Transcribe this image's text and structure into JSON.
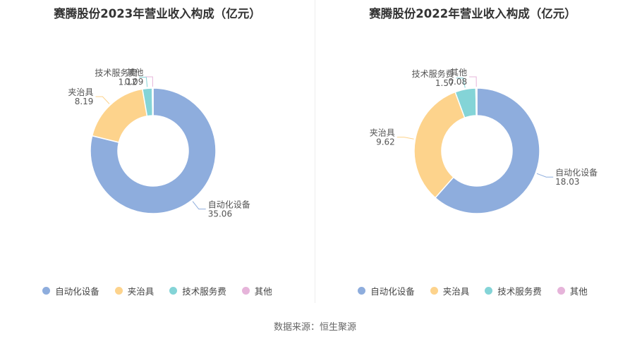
{
  "colors": {
    "automation": "#8eaddd",
    "fixture": "#fdd38c",
    "tech": "#84d4d7",
    "other": "#e6b4da"
  },
  "source_label": "数据来源：恒生聚源",
  "chart_data": [
    {
      "type": "pie",
      "title": "赛腾股份2023年营业收入构成（亿元）",
      "legend_position": "bottom",
      "slices": [
        {
          "label": "自动化设备",
          "value": 35.06,
          "value_text": "35.06"
        },
        {
          "label": "夹治具",
          "value": 8.19,
          "value_text": "8.19"
        },
        {
          "label": "技术服务费",
          "value": 1.12,
          "value_text": "1.12"
        },
        {
          "label": "其他",
          "value": 0.09,
          "value_text": "0.09"
        }
      ]
    },
    {
      "type": "pie",
      "title": "赛腾股份2022年营业收入构成（亿元）",
      "legend_position": "bottom",
      "slices": [
        {
          "label": "自动化设备",
          "value": 18.03,
          "value_text": "18.03"
        },
        {
          "label": "夹治具",
          "value": 9.62,
          "value_text": "9.62"
        },
        {
          "label": "技术服务费",
          "value": 1.57,
          "value_text": "1.57"
        },
        {
          "label": "其他",
          "value": 0.08,
          "value_text": "0.08"
        }
      ]
    }
  ]
}
